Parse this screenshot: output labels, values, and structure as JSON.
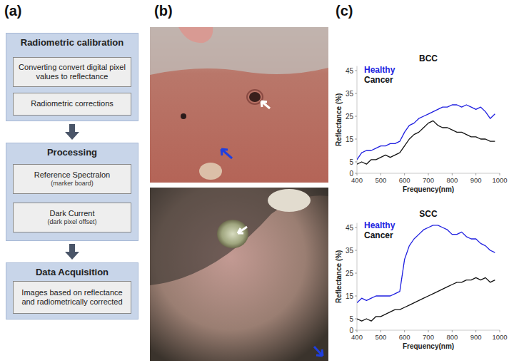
{
  "figure_labels": [
    "(a)",
    "(b)",
    "(c)"
  ],
  "flowchart": {
    "steps": [
      {
        "title": "Radiometric calibration",
        "boxes": [
          {
            "text": "Converting convert digital pixel values to reflectance"
          },
          {
            "text": "Radiometric corrections"
          }
        ]
      },
      {
        "title": "Processing",
        "boxes": [
          {
            "text": "Reference Spectralon",
            "sub": "(marker board)"
          },
          {
            "text": "Dark Current",
            "sub": "(dark pixel offset)"
          }
        ]
      },
      {
        "title": "Data Acquisition",
        "boxes": [
          {
            "text": "Images based on reflectance and radiometrically corrected"
          }
        ]
      }
    ]
  },
  "chart_data": [
    {
      "type": "line",
      "title": "BCC",
      "x_label": "Frequency(nm)",
      "y_label": "Reflectance (%)",
      "x": [
        400,
        420,
        440,
        460,
        480,
        500,
        520,
        540,
        560,
        580,
        600,
        620,
        640,
        660,
        680,
        700,
        720,
        740,
        760,
        780,
        800,
        820,
        840,
        860,
        880,
        900,
        920,
        940,
        960,
        980
      ],
      "series": [
        {
          "name": "Healthy",
          "color": "#1f1fe0",
          "values": [
            6,
            9,
            10,
            10,
            11,
            12,
            12,
            13,
            13,
            14,
            18,
            21,
            22,
            24,
            25,
            26,
            27,
            28,
            29,
            29,
            30,
            30,
            29,
            30,
            29,
            28,
            29,
            27,
            24,
            26
          ]
        },
        {
          "name": "Cancer",
          "color": "#111111",
          "values": [
            4,
            5,
            4,
            6,
            6,
            7,
            8,
            7,
            8,
            9,
            12,
            15,
            17,
            18,
            20,
            22,
            23,
            21,
            20,
            20,
            19,
            18,
            18,
            17,
            16,
            16,
            15,
            15,
            14,
            14
          ]
        }
      ],
      "xlim": [
        400,
        1000
      ],
      "xticks": [
        400,
        500,
        600,
        700,
        800,
        900,
        1000
      ],
      "ylim": [
        0,
        47
      ],
      "yticks": [
        0,
        5,
        15,
        25,
        35,
        45
      ],
      "legend": "top-left",
      "grid": false
    },
    {
      "type": "line",
      "title": "SCC",
      "x_label": "Frequency(nm)",
      "y_label": "Reflectance (%)",
      "x": [
        400,
        420,
        440,
        460,
        480,
        500,
        520,
        540,
        560,
        580,
        600,
        620,
        640,
        660,
        680,
        700,
        720,
        740,
        760,
        780,
        800,
        820,
        840,
        860,
        880,
        900,
        920,
        940,
        960,
        980
      ],
      "series": [
        {
          "name": "Healthy",
          "color": "#1f1fe0",
          "values": [
            12,
            14,
            13,
            14,
            15,
            15,
            15,
            15,
            16,
            17,
            31,
            37,
            40,
            42,
            44,
            45,
            46,
            46,
            45,
            44,
            42,
            42,
            43,
            41,
            40,
            40,
            38,
            37,
            35,
            34
          ]
        },
        {
          "name": "Cancer",
          "color": "#111111",
          "values": [
            5,
            4,
            5,
            4,
            6,
            6,
            7,
            8,
            9,
            9,
            10,
            11,
            12,
            13,
            14,
            15,
            16,
            17,
            18,
            19,
            20,
            21,
            21,
            22,
            22,
            23,
            22,
            23,
            21,
            22
          ]
        }
      ],
      "xlim": [
        400,
        1000
      ],
      "xticks": [
        400,
        500,
        600,
        700,
        800,
        900,
        1000
      ],
      "ylim": [
        0,
        47
      ],
      "yticks": [
        0,
        5,
        15,
        25,
        35,
        45
      ],
      "legend": "top-left",
      "grid": false
    }
  ]
}
